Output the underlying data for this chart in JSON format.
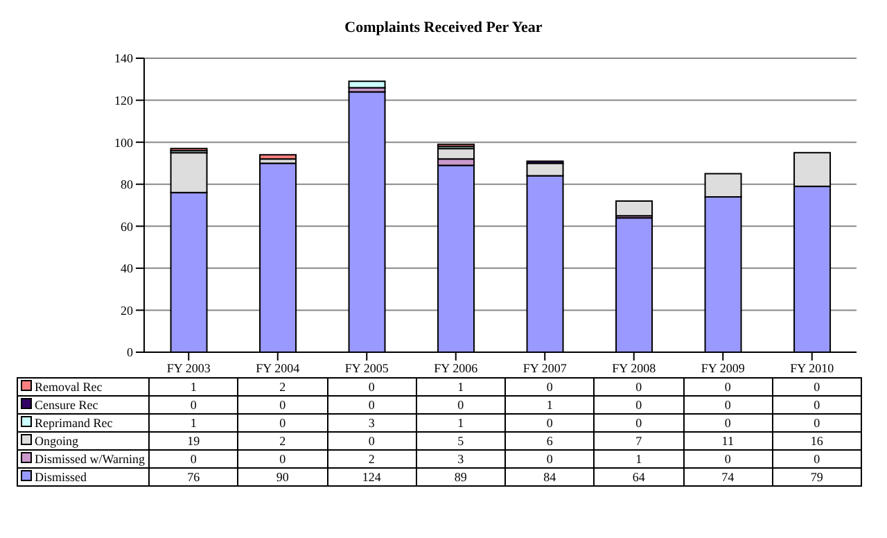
{
  "chart_data": {
    "type": "bar",
    "title": "Complaints Received Per Year",
    "stacked": true,
    "grid": "y",
    "legend": "bottom",
    "data_labels": true,
    "categories": [
      "FY 2003",
      "FY 2004",
      "FY 2005",
      "FY 2006",
      "FY 2007",
      "FY 2008",
      "FY 2009",
      "FY 2010"
    ],
    "ylim": [
      0,
      140
    ],
    "yticks": [
      0,
      20,
      40,
      60,
      80,
      100,
      120,
      140
    ],
    "series": [
      {
        "name": "Dismissed",
        "color": "#9999ff",
        "values": [
          76,
          90,
          124,
          89,
          84,
          64,
          74,
          79
        ]
      },
      {
        "name": "Dismissed w/Warning",
        "color": "#cc99cc",
        "values": [
          0,
          0,
          2,
          3,
          0,
          1,
          0,
          0
        ]
      },
      {
        "name": "Ongoing",
        "color": "#dddddd",
        "values": [
          19,
          2,
          0,
          5,
          6,
          7,
          11,
          16
        ]
      },
      {
        "name": "Reprimand Rec",
        "color": "#ccffff",
        "values": [
          1,
          0,
          3,
          1,
          0,
          0,
          0,
          0
        ]
      },
      {
        "name": "Censure Rec",
        "color": "#330066",
        "values": [
          0,
          0,
          0,
          0,
          1,
          0,
          0,
          0
        ]
      },
      {
        "name": "Removal Rec",
        "color": "#ff8080",
        "values": [
          1,
          2,
          0,
          1,
          0,
          0,
          0,
          0
        ]
      }
    ]
  }
}
